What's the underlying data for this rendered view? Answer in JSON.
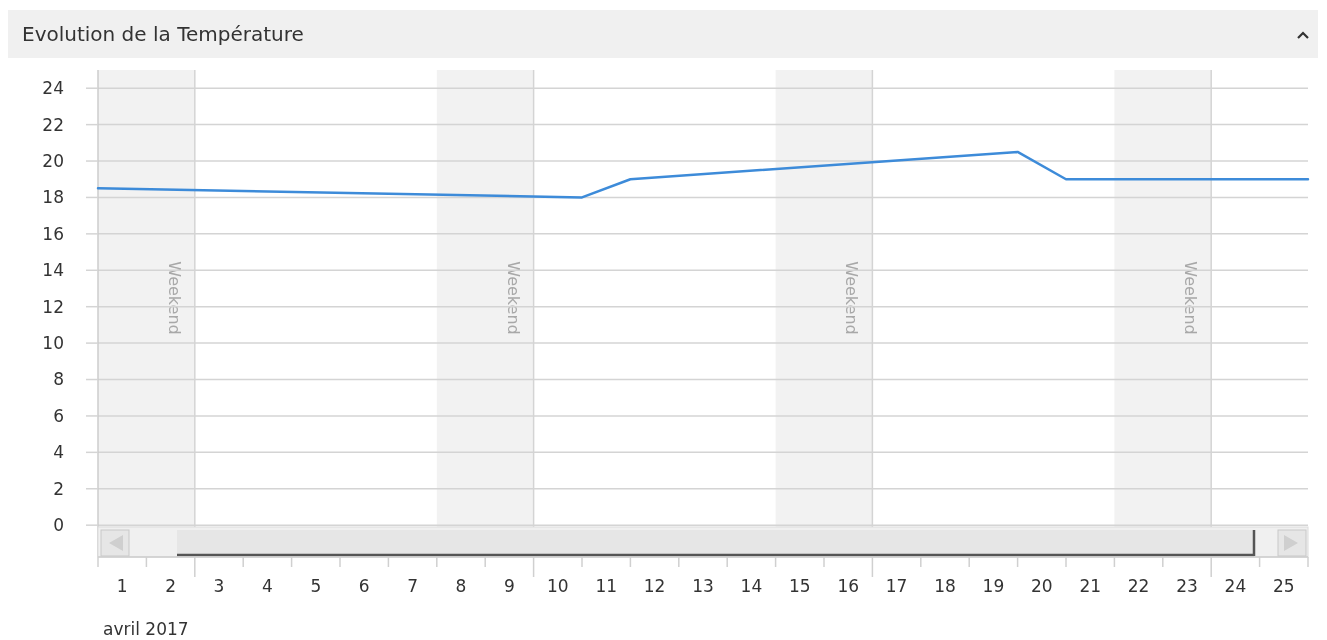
{
  "chart_data": {
    "type": "line",
    "title": "Evolution de la Température",
    "xlabel": "avril 2017",
    "x": [
      "2017-04-01",
      "2017-04-11",
      "2017-04-12",
      "2017-04-20",
      "2017-04-21",
      "2017-04-26"
    ],
    "series": [
      {
        "color": "#3d8bd9",
        "values": [
          18.5,
          18.0,
          19.0,
          20.5,
          19.0,
          19.0
        ]
      }
    ],
    "xlim": [
      "2017-04-01",
      "2017-04-26"
    ],
    "xticks": [
      {
        "value": "2017-04-01T12:00",
        "label": "1"
      },
      {
        "value": "2017-04-02T12:00",
        "label": "2"
      },
      {
        "value": "2017-04-03T12:00",
        "label": "3"
      },
      {
        "value": "2017-04-04T12:00",
        "label": "4"
      },
      {
        "value": "2017-04-05T12:00",
        "label": "5"
      },
      {
        "value": "2017-04-06T12:00",
        "label": "6"
      },
      {
        "value": "2017-04-07T12:00",
        "label": "7"
      },
      {
        "value": "2017-04-08T12:00",
        "label": "8"
      },
      {
        "value": "2017-04-09T12:00",
        "label": "9"
      },
      {
        "value": "2017-04-10T12:00",
        "label": "10"
      },
      {
        "value": "2017-04-11T12:00",
        "label": "11"
      },
      {
        "value": "2017-04-12T12:00",
        "label": "12"
      },
      {
        "value": "2017-04-13T12:00",
        "label": "13"
      },
      {
        "value": "2017-04-14T12:00",
        "label": "14"
      },
      {
        "value": "2017-04-15T12:00",
        "label": "15"
      },
      {
        "value": "2017-04-16T12:00",
        "label": "16"
      },
      {
        "value": "2017-04-17T12:00",
        "label": "17"
      },
      {
        "value": "2017-04-18T12:00",
        "label": "18"
      },
      {
        "value": "2017-04-19T12:00",
        "label": "19"
      },
      {
        "value": "2017-04-20T12:00",
        "label": "20"
      },
      {
        "value": "2017-04-21T12:00",
        "label": "21"
      },
      {
        "value": "2017-04-22T12:00",
        "label": "22"
      },
      {
        "value": "2017-04-23T12:00",
        "label": "23"
      },
      {
        "value": "2017-04-24T12:00",
        "label": "24"
      },
      {
        "value": "2017-04-25T12:00",
        "label": "25"
      }
    ],
    "ylim": [
      -0.1,
      25
    ],
    "yticks": [
      0,
      2,
      4,
      6,
      8,
      10,
      12,
      14,
      16,
      18,
      20,
      22,
      24
    ],
    "grid": "y",
    "marker": "none",
    "line_style": "solid",
    "bands": [
      {
        "axis": "x",
        "from": "2017-04-01",
        "to": "2017-04-03",
        "label": "Weekend",
        "color": "#f2f2f2"
      },
      {
        "axis": "x",
        "from": "2017-04-08",
        "to": "2017-04-10",
        "label": "Weekend",
        "color": "#f2f2f2"
      },
      {
        "axis": "x",
        "from": "2017-04-15",
        "to": "2017-04-17",
        "label": "Weekend",
        "color": "#f2f2f2"
      },
      {
        "axis": "x",
        "from": "2017-04-22",
        "to": "2017-04-24",
        "label": "Weekend",
        "color": "#f2f2f2"
      }
    ]
  }
}
